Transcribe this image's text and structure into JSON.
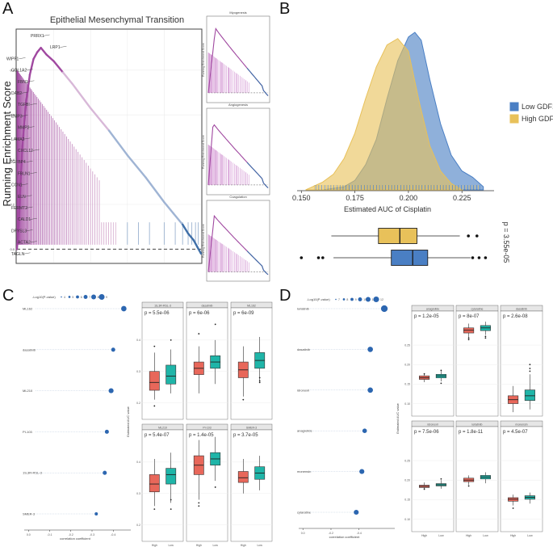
{
  "panel_labels": [
    "A",
    "B",
    "C",
    "D"
  ],
  "colors": {
    "enrich_line": "#a048a0",
    "baseline": "#444444",
    "high_box": "#e8675a",
    "low_box": "#1fb5a8",
    "low_gdf15": "#4a7fc4",
    "high_gdf15": "#e8c15a",
    "dot": "#2c66b0"
  },
  "chart_data": [
    {
      "id": "A-main",
      "type": "line",
      "title": "Epithelial Mesenchymal Transition",
      "ylabel": "Running Enrichment Score",
      "yticks": [
        {
          "v": 0.0,
          "label": "0.0"
        },
        {
          "v": 0.2,
          "label": "0.2"
        },
        {
          "v": 0.4,
          "label": "0.4"
        },
        {
          "v": 0.6,
          "label": "0.6"
        },
        {
          "v": 0.8,
          "label": "0.8"
        }
      ],
      "ylim": [
        -0.06,
        0.98
      ],
      "x": [
        0,
        0.01,
        0.02,
        0.03,
        0.05,
        0.07,
        0.09,
        0.11,
        0.13,
        0.16,
        0.2,
        0.25,
        0.3,
        0.4,
        0.5,
        0.6,
        0.7,
        0.8,
        0.85,
        0.9,
        0.93,
        0.96,
        0.98,
        1.0
      ],
      "y": [
        0.0,
        0.12,
        0.3,
        0.46,
        0.66,
        0.78,
        0.85,
        0.88,
        0.9,
        0.87,
        0.84,
        0.79,
        0.74,
        0.63,
        0.53,
        0.42,
        0.32,
        0.21,
        0.16,
        0.11,
        0.07,
        0.04,
        0.01,
        -0.02
      ],
      "gene_labels": [
        "PRRX1",
        "LRP1",
        "WIPF1",
        "COL1A2",
        "FBN1",
        "DAB2",
        "TGFBI",
        "EMP3",
        "MMP2",
        "LAMA2",
        "CXCL12",
        "IGFBP4",
        "FBLN1",
        "CCN1",
        "ELN",
        "FERMT2",
        "CALD1",
        "DPYSL3",
        "ACTA2",
        "TAGLN"
      ]
    },
    {
      "id": "A-sub",
      "type": "line",
      "titles": [
        "Myogenesis",
        "Angiogenesis",
        "Coagulation"
      ],
      "ylabel": "Running Enrichment Score"
    },
    {
      "id": "B-density",
      "type": "area",
      "xlabel": "Estimated AUC of Cisplatin",
      "xticks": [
        {
          "v": 0.15,
          "label": "0.150"
        },
        {
          "v": 0.175,
          "label": "0.175"
        },
        {
          "v": 0.2,
          "label": "0.200"
        },
        {
          "v": 0.225,
          "label": "0.225"
        }
      ],
      "xlim": [
        0.148,
        0.24
      ],
      "legend_position": "right",
      "series": [
        {
          "name": "Low GDF15",
          "x": [
            0.16,
            0.17,
            0.175,
            0.18,
            0.185,
            0.19,
            0.195,
            0.2,
            0.203,
            0.206,
            0.21,
            0.215,
            0.22,
            0.225,
            0.23,
            0.235
          ],
          "y": [
            0.0,
            0.02,
            0.06,
            0.16,
            0.32,
            0.58,
            0.82,
            0.97,
            1.0,
            0.95,
            0.7,
            0.42,
            0.22,
            0.12,
            0.08,
            0.02
          ]
        },
        {
          "name": "High GDF15",
          "x": [
            0.152,
            0.16,
            0.165,
            0.17,
            0.175,
            0.18,
            0.185,
            0.19,
            0.195,
            0.2,
            0.205,
            0.21,
            0.215,
            0.22,
            0.225
          ],
          "y": [
            0.0,
            0.05,
            0.1,
            0.2,
            0.36,
            0.58,
            0.78,
            0.92,
            0.96,
            0.88,
            0.56,
            0.28,
            0.12,
            0.04,
            0.0
          ]
        }
      ],
      "pvalue": "p = 3.55e-05",
      "boxes": [
        {
          "name": "High GDF15",
          "q1": 0.186,
          "median": 0.196,
          "q3": 0.204,
          "whisker_low": 0.164,
          "whisker_high": 0.224,
          "outliers": [
            0.228,
            0.232
          ]
        },
        {
          "name": "Low GDF15",
          "q1": 0.192,
          "median": 0.202,
          "q3": 0.209,
          "whisker_low": 0.165,
          "whisker_high": 0.229,
          "outliers": [
            0.15,
            0.158,
            0.16,
            0.23,
            0.233,
            0.236
          ]
        }
      ]
    },
    {
      "id": "C-dots",
      "type": "scatter",
      "legend_title": "-Log10(P-value)",
      "legend_values": [
        "4",
        "5",
        "6",
        "7",
        "8",
        "9"
      ],
      "xlabel": "correlation coefficient",
      "xticks": [
        {
          "v": 0.0,
          "label": "0.0"
        },
        {
          "v": -0.1,
          "label": "-0.1"
        },
        {
          "v": -0.2,
          "label": "-0.2"
        },
        {
          "v": -0.3,
          "label": "-0.3"
        },
        {
          "v": -0.4,
          "label": "-0.4"
        }
      ],
      "xlim": [
        0.02,
        -0.46
      ],
      "drugs": [
        "ML162",
        "dasatinib",
        "ML210",
        "PI-103",
        "1S,3R-RSL-3",
        "SMER-3"
      ],
      "x": [
        -0.45,
        -0.4,
        -0.39,
        -0.37,
        -0.36,
        -0.32
      ],
      "size": [
        9,
        6,
        8,
        6,
        6,
        4
      ]
    },
    {
      "id": "C-box",
      "type": "bar",
      "ylabel": "Estimated AUC value",
      "categories": [
        "High",
        "Low"
      ],
      "ylim": [
        0.15,
        0.5
      ],
      "yticks": [
        {
          "v": 0.2,
          "label": "0.2"
        },
        {
          "v": 0.3,
          "label": "0.3"
        },
        {
          "v": 0.4,
          "label": "0.4"
        }
      ],
      "facets": [
        {
          "name": "1S,3R-RSL-3",
          "p": "p = 5.5e-06",
          "boxes": [
            [
              0.21,
              0.24,
              0.265,
              0.3,
              0.36
            ],
            [
              0.23,
              0.26,
              0.285,
              0.32,
              0.37
            ]
          ],
          "outliers": [
            [
              0.38,
              0.19
            ],
            [
              0.4
            ]
          ]
        },
        {
          "name": "dasatinib",
          "p": "p = 6e-06",
          "boxes": [
            [
              0.23,
              0.29,
              0.31,
              0.33,
              0.38
            ],
            [
              0.26,
              0.31,
              0.33,
              0.35,
              0.4
            ]
          ],
          "outliers": [
            [
              0.42
            ],
            [
              0.45
            ]
          ]
        },
        {
          "name": "ML162",
          "p": "p = 6e-09",
          "boxes": [
            [
              0.22,
              0.28,
              0.305,
              0.33,
              0.38
            ],
            [
              0.27,
              0.31,
              0.335,
              0.36,
              0.41
            ]
          ],
          "outliers": [
            [
              0.21
            ],
            [
              0.28,
              0.27,
              0.265
            ]
          ]
        },
        {
          "name": "ML210",
          "p": "p = 5.4e-07",
          "boxes": [
            [
              0.26,
              0.305,
              0.33,
              0.36,
              0.41
            ],
            [
              0.27,
              0.33,
              0.36,
              0.38,
              0.43
            ]
          ],
          "outliers": [
            [
              0.25
            ],
            [
              0.28,
              0.25
            ]
          ]
        },
        {
          "name": "PI-103",
          "p": "p = 1.4e-05",
          "boxes": [
            [
              0.28,
              0.36,
              0.39,
              0.42,
              0.47
            ],
            [
              0.34,
              0.39,
              0.41,
              0.43,
              0.48
            ]
          ],
          "outliers": [
            [
              0.27,
              0.26
            ],
            [
              0.32
            ]
          ]
        },
        {
          "name": "SMER-3",
          "p": "p = 3.7e-05",
          "boxes": [
            [
              0.3,
              0.335,
              0.35,
              0.37,
              0.41
            ],
            [
              0.31,
              0.345,
              0.365,
              0.385,
              0.42
            ]
          ],
          "outliers": [
            [],
            []
          ]
        }
      ]
    },
    {
      "id": "D-dots",
      "type": "scatter",
      "legend_title": "-Log10(P-value)",
      "legend_values": [
        "7",
        "8",
        "9",
        "10",
        "11",
        "12"
      ],
      "xlabel": "correlation coefficient",
      "xticks": [
        {
          "v": 0.0,
          "label": "0.0"
        },
        {
          "v": -0.2,
          "label": "-0.2"
        },
        {
          "v": -0.4,
          "label": "-0.4"
        }
      ],
      "xlim": [
        0.03,
        -0.62
      ],
      "drugs": [
        "lorlatinib",
        "dasatinib",
        "idronoxil",
        "anagrelide",
        "monensin",
        "cylaratine"
      ],
      "x": [
        -0.58,
        -0.48,
        -0.48,
        -0.44,
        -0.42,
        -0.38
      ],
      "size": [
        12,
        9,
        9,
        7,
        8,
        8
      ]
    },
    {
      "id": "D-box",
      "type": "bar",
      "ylabel": "Estimated AUC value",
      "categories": [
        "High",
        "Low"
      ],
      "ylim": [
        0.07,
        0.335
      ],
      "yticks": [
        {
          "v": 0.1,
          "label": "0.10"
        },
        {
          "v": 0.15,
          "label": "0.15"
        },
        {
          "v": 0.2,
          "label": "0.20"
        },
        {
          "v": 0.25,
          "label": "0.25"
        }
      ],
      "facets": [
        {
          "name": "anagrelide",
          "p": "p = 1.2e-05",
          "boxes": [
            [
              0.155,
              0.162,
              0.166,
              0.171,
              0.178
            ],
            [
              0.157,
              0.166,
              0.171,
              0.175,
              0.183
            ]
          ],
          "outliers": [
            [
              0.176
            ],
            [
              0.185,
              0.152
            ]
          ]
        },
        {
          "name": "cylaratine",
          "p": "p = 8e-07",
          "boxes": [
            [
              0.268,
              0.281,
              0.288,
              0.294,
              0.305
            ],
            [
              0.276,
              0.287,
              0.294,
              0.3,
              0.31
            ]
          ],
          "outliers": [
            [
              0.268,
              0.264
            ],
            [
              0.272,
              0.268
            ]
          ]
        },
        {
          "name": "dasatinib",
          "p": "p = 2.6e-08",
          "boxes": [
            [
              0.078,
              0.1,
              0.11,
              0.12,
              0.145
            ],
            [
              0.085,
              0.108,
              0.12,
              0.135,
              0.175
            ]
          ],
          "outliers": [
            [],
            [
              0.183,
              0.19,
              0.2
            ]
          ]
        },
        {
          "name": "idronoxil",
          "p": "p = 7.5e-06",
          "boxes": [
            [
              0.175,
              0.181,
              0.184,
              0.187,
              0.194
            ],
            [
              0.178,
              0.185,
              0.188,
              0.191,
              0.2
            ]
          ],
          "outliers": [
            [
              0.177
            ],
            [
              0.203
            ]
          ]
        },
        {
          "name": "lorlatinib",
          "p": "p = 1.8e-11",
          "boxes": [
            [
              0.188,
              0.196,
              0.2,
              0.205,
              0.212
            ],
            [
              0.192,
              0.203,
              0.208,
              0.212,
              0.22
            ]
          ],
          "outliers": [
            [
              0.185
            ],
            []
          ]
        },
        {
          "name": "monensin",
          "p": "p = 4.5e-07",
          "boxes": [
            [
              0.135,
              0.146,
              0.151,
              0.155,
              0.163
            ],
            [
              0.14,
              0.151,
              0.156,
              0.16,
              0.168
            ]
          ],
          "outliers": [
            [
              0.128
            ],
            []
          ]
        }
      ]
    }
  ]
}
